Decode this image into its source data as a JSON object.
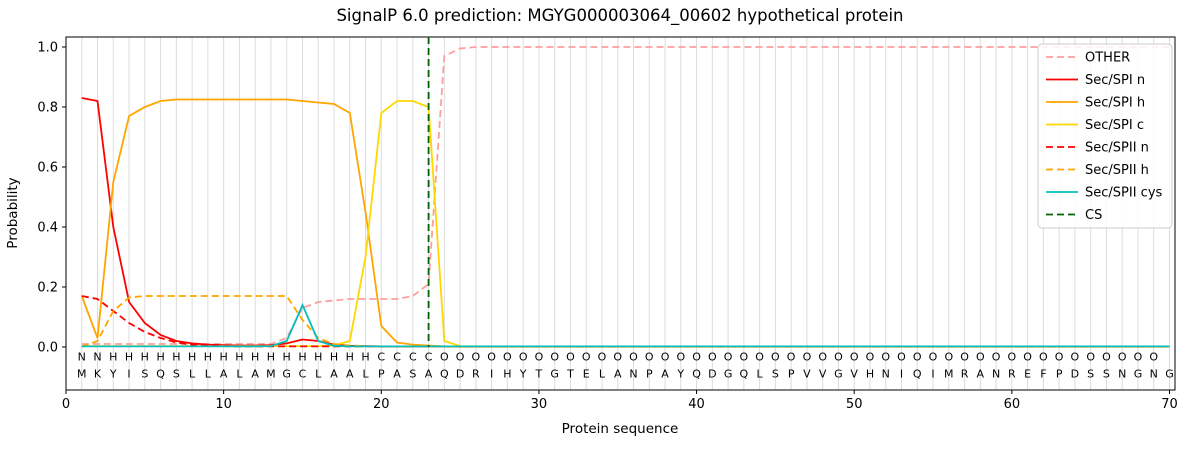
{
  "chart_data": {
    "type": "line",
    "title": "SignalP 6.0 prediction: MGYG000003064_00602 hypothetical protein",
    "xlabel": "Protein sequence",
    "ylabel": "Probability",
    "xticks": [
      0,
      10,
      20,
      30,
      40,
      50,
      60,
      70
    ],
    "yticks": [
      0,
      0.2,
      0.4,
      0.6,
      0.8,
      1
    ],
    "xlim": [
      0,
      70.35
    ],
    "ylim": [
      -0.14,
      1.03
    ],
    "grid": "light-gray vertical line at every residue position",
    "legend_position": "upper right",
    "cs_label": "CS",
    "cs_color": "#006400",
    "cs_position": 23,
    "sequence": "MKYISQSLLALAMGCLAALPASAQDRIHYTGTELANPAYQDGQLSPVVGVHNIQIMRANREFPDSSNGNG",
    "region_labels": "NNHHHHHHHHHHHHHHHHHCCCCOOOOOOOOOOOOOOOOOOOOOOOOOOOOOOOOOOOOOOOOOOOOOO",
    "region_colors": {
      "N": "#ff0000",
      "H": "#ffa500",
      "C": "#ffd700",
      "O": "#808080"
    },
    "series": [
      {
        "name": "OTHER",
        "color": "#ff9e9e",
        "style": "dashed",
        "values": [
          0.01,
          0.01,
          0.01,
          0.01,
          0.01,
          0.01,
          0.01,
          0.01,
          0.01,
          0.01,
          0.01,
          0.01,
          0.01,
          0.03,
          0.13,
          0.15,
          0.155,
          0.16,
          0.16,
          0.16,
          0.16,
          0.17,
          0.21,
          0.97,
          0.995,
          1,
          1,
          1,
          1,
          1,
          1,
          1,
          1,
          1,
          1,
          1,
          1,
          1,
          1,
          1,
          1,
          1,
          1,
          1,
          1,
          1,
          1,
          1,
          1,
          1,
          1,
          1,
          1,
          1,
          1,
          1,
          1,
          1,
          1,
          1,
          1,
          1,
          1,
          1,
          1,
          1,
          1,
          1,
          1,
          1
        ]
      },
      {
        "name": "Sec/SPI n",
        "color": "#ff0000",
        "style": "solid",
        "values": [
          0.83,
          0.82,
          0.4,
          0.15,
          0.08,
          0.04,
          0.02,
          0.012,
          0.008,
          0.006,
          0.005,
          0.005,
          0.006,
          0.012,
          0.025,
          0.02,
          0.008,
          0.004,
          0.003,
          0.002,
          0.002,
          0.002,
          0.002,
          0.002,
          0.002,
          0.002,
          0.002,
          0.002,
          0.002,
          0.002,
          0.002,
          0.002,
          0.002,
          0.002,
          0.002,
          0.002,
          0.002,
          0.002,
          0.002,
          0.002,
          0.002,
          0.002,
          0.002,
          0.002,
          0.002,
          0.002,
          0.002,
          0.002,
          0.002,
          0.002,
          0.002,
          0.002,
          0.002,
          0.002,
          0.002,
          0.002,
          0.002,
          0.002,
          0.002,
          0.002,
          0.002,
          0.002,
          0.002,
          0.002,
          0.002,
          0.002,
          0.002,
          0.002,
          0.002,
          0.002
        ]
      },
      {
        "name": "Sec/SPI h",
        "color": "#ffa500",
        "style": "solid",
        "values": [
          0.17,
          0.03,
          0.55,
          0.77,
          0.8,
          0.82,
          0.825,
          0.825,
          0.825,
          0.825,
          0.825,
          0.825,
          0.825,
          0.825,
          0.82,
          0.815,
          0.81,
          0.78,
          0.45,
          0.07,
          0.015,
          0.008,
          0.005,
          0.002,
          0.001,
          0.001,
          0.001,
          0.001,
          0.001,
          0.001,
          0.001,
          0.001,
          0.001,
          0.001,
          0.001,
          0.001,
          0.001,
          0.001,
          0.001,
          0.001,
          0.001,
          0.001,
          0.001,
          0.001,
          0.001,
          0.001,
          0.001,
          0.001,
          0.001,
          0.001,
          0.001,
          0.001,
          0.001,
          0.001,
          0.001,
          0.001,
          0.001,
          0.001,
          0.001,
          0.001,
          0.001,
          0.001,
          0.001,
          0.001,
          0.001,
          0.001,
          0.001,
          0.001,
          0.001,
          0.001
        ]
      },
      {
        "name": "Sec/SPI c",
        "color": "#ffd700",
        "style": "solid",
        "values": [
          0.003,
          0.003,
          0.003,
          0.003,
          0.003,
          0.003,
          0.003,
          0.003,
          0.003,
          0.003,
          0.003,
          0.003,
          0.003,
          0.003,
          0.003,
          0.003,
          0.005,
          0.02,
          0.3,
          0.78,
          0.82,
          0.82,
          0.8,
          0.02,
          0.003,
          0.002,
          0.002,
          0.002,
          0.002,
          0.002,
          0.002,
          0.002,
          0.002,
          0.002,
          0.002,
          0.002,
          0.002,
          0.002,
          0.002,
          0.002,
          0.002,
          0.002,
          0.002,
          0.002,
          0.002,
          0.002,
          0.002,
          0.002,
          0.002,
          0.002,
          0.002,
          0.002,
          0.002,
          0.002,
          0.002,
          0.002,
          0.002,
          0.002,
          0.002,
          0.002,
          0.002,
          0.002,
          0.002,
          0.002,
          0.002,
          0.002,
          0.002,
          0.002,
          0.002,
          0.002
        ]
      },
      {
        "name": "Sec/SPII n",
        "color": "#ff0000",
        "style": "dashed",
        "values": [
          0.17,
          0.16,
          0.12,
          0.08,
          0.05,
          0.03,
          0.015,
          0.008,
          0.005,
          0.003,
          0.002,
          0.002,
          0.002,
          0.002,
          0.002,
          0.002,
          0.002,
          0.002,
          0.002,
          0.002,
          0.002,
          0.002,
          0.002,
          0.002,
          0.002,
          0.002,
          0.002,
          0.002,
          0.002,
          0.002,
          0.002,
          0.002,
          0.002,
          0.002,
          0.002,
          0.002,
          0.002,
          0.002,
          0.002,
          0.002,
          0.002,
          0.002,
          0.002,
          0.002,
          0.002,
          0.002,
          0.002,
          0.002,
          0.002,
          0.002,
          0.002,
          0.002,
          0.002,
          0.002,
          0.002,
          0.002,
          0.002,
          0.002,
          0.002,
          0.002,
          0.002,
          0.002,
          0.002,
          0.002,
          0.002,
          0.002,
          0.002,
          0.002,
          0.002,
          0.002
        ]
      },
      {
        "name": "Sec/SPII h",
        "color": "#ffa500",
        "style": "dashed",
        "values": [
          0.002,
          0.02,
          0.12,
          0.165,
          0.17,
          0.17,
          0.17,
          0.17,
          0.17,
          0.17,
          0.17,
          0.17,
          0.17,
          0.17,
          0.09,
          0.03,
          0.01,
          0.005,
          0.003,
          0.002,
          0.002,
          0.002,
          0.002,
          0.002,
          0.002,
          0.002,
          0.002,
          0.002,
          0.002,
          0.002,
          0.002,
          0.002,
          0.002,
          0.002,
          0.002,
          0.002,
          0.002,
          0.002,
          0.002,
          0.002,
          0.002,
          0.002,
          0.002,
          0.002,
          0.002,
          0.002,
          0.002,
          0.002,
          0.002,
          0.002,
          0.002,
          0.002,
          0.002,
          0.002,
          0.002,
          0.002,
          0.002,
          0.002,
          0.002,
          0.002,
          0.002,
          0.002,
          0.002,
          0.002,
          0.002,
          0.002,
          0.002,
          0.002,
          0.002,
          0.002
        ]
      },
      {
        "name": "Sec/SPII cys",
        "color": "#00bfbf",
        "style": "solid",
        "values": [
          0.002,
          0.002,
          0.002,
          0.002,
          0.002,
          0.002,
          0.002,
          0.002,
          0.002,
          0.002,
          0.002,
          0.002,
          0.003,
          0.02,
          0.14,
          0.02,
          0.004,
          0.002,
          0.002,
          0.002,
          0.002,
          0.002,
          0.002,
          0.002,
          0.002,
          0.002,
          0.002,
          0.002,
          0.002,
          0.002,
          0.002,
          0.002,
          0.002,
          0.002,
          0.002,
          0.002,
          0.002,
          0.002,
          0.002,
          0.002,
          0.002,
          0.002,
          0.002,
          0.002,
          0.002,
          0.002,
          0.002,
          0.002,
          0.002,
          0.002,
          0.002,
          0.002,
          0.002,
          0.002,
          0.002,
          0.002,
          0.002,
          0.002,
          0.002,
          0.002,
          0.002,
          0.002,
          0.002,
          0.002,
          0.002,
          0.002,
          0.002,
          0.002,
          0.002,
          0.002
        ]
      }
    ]
  }
}
